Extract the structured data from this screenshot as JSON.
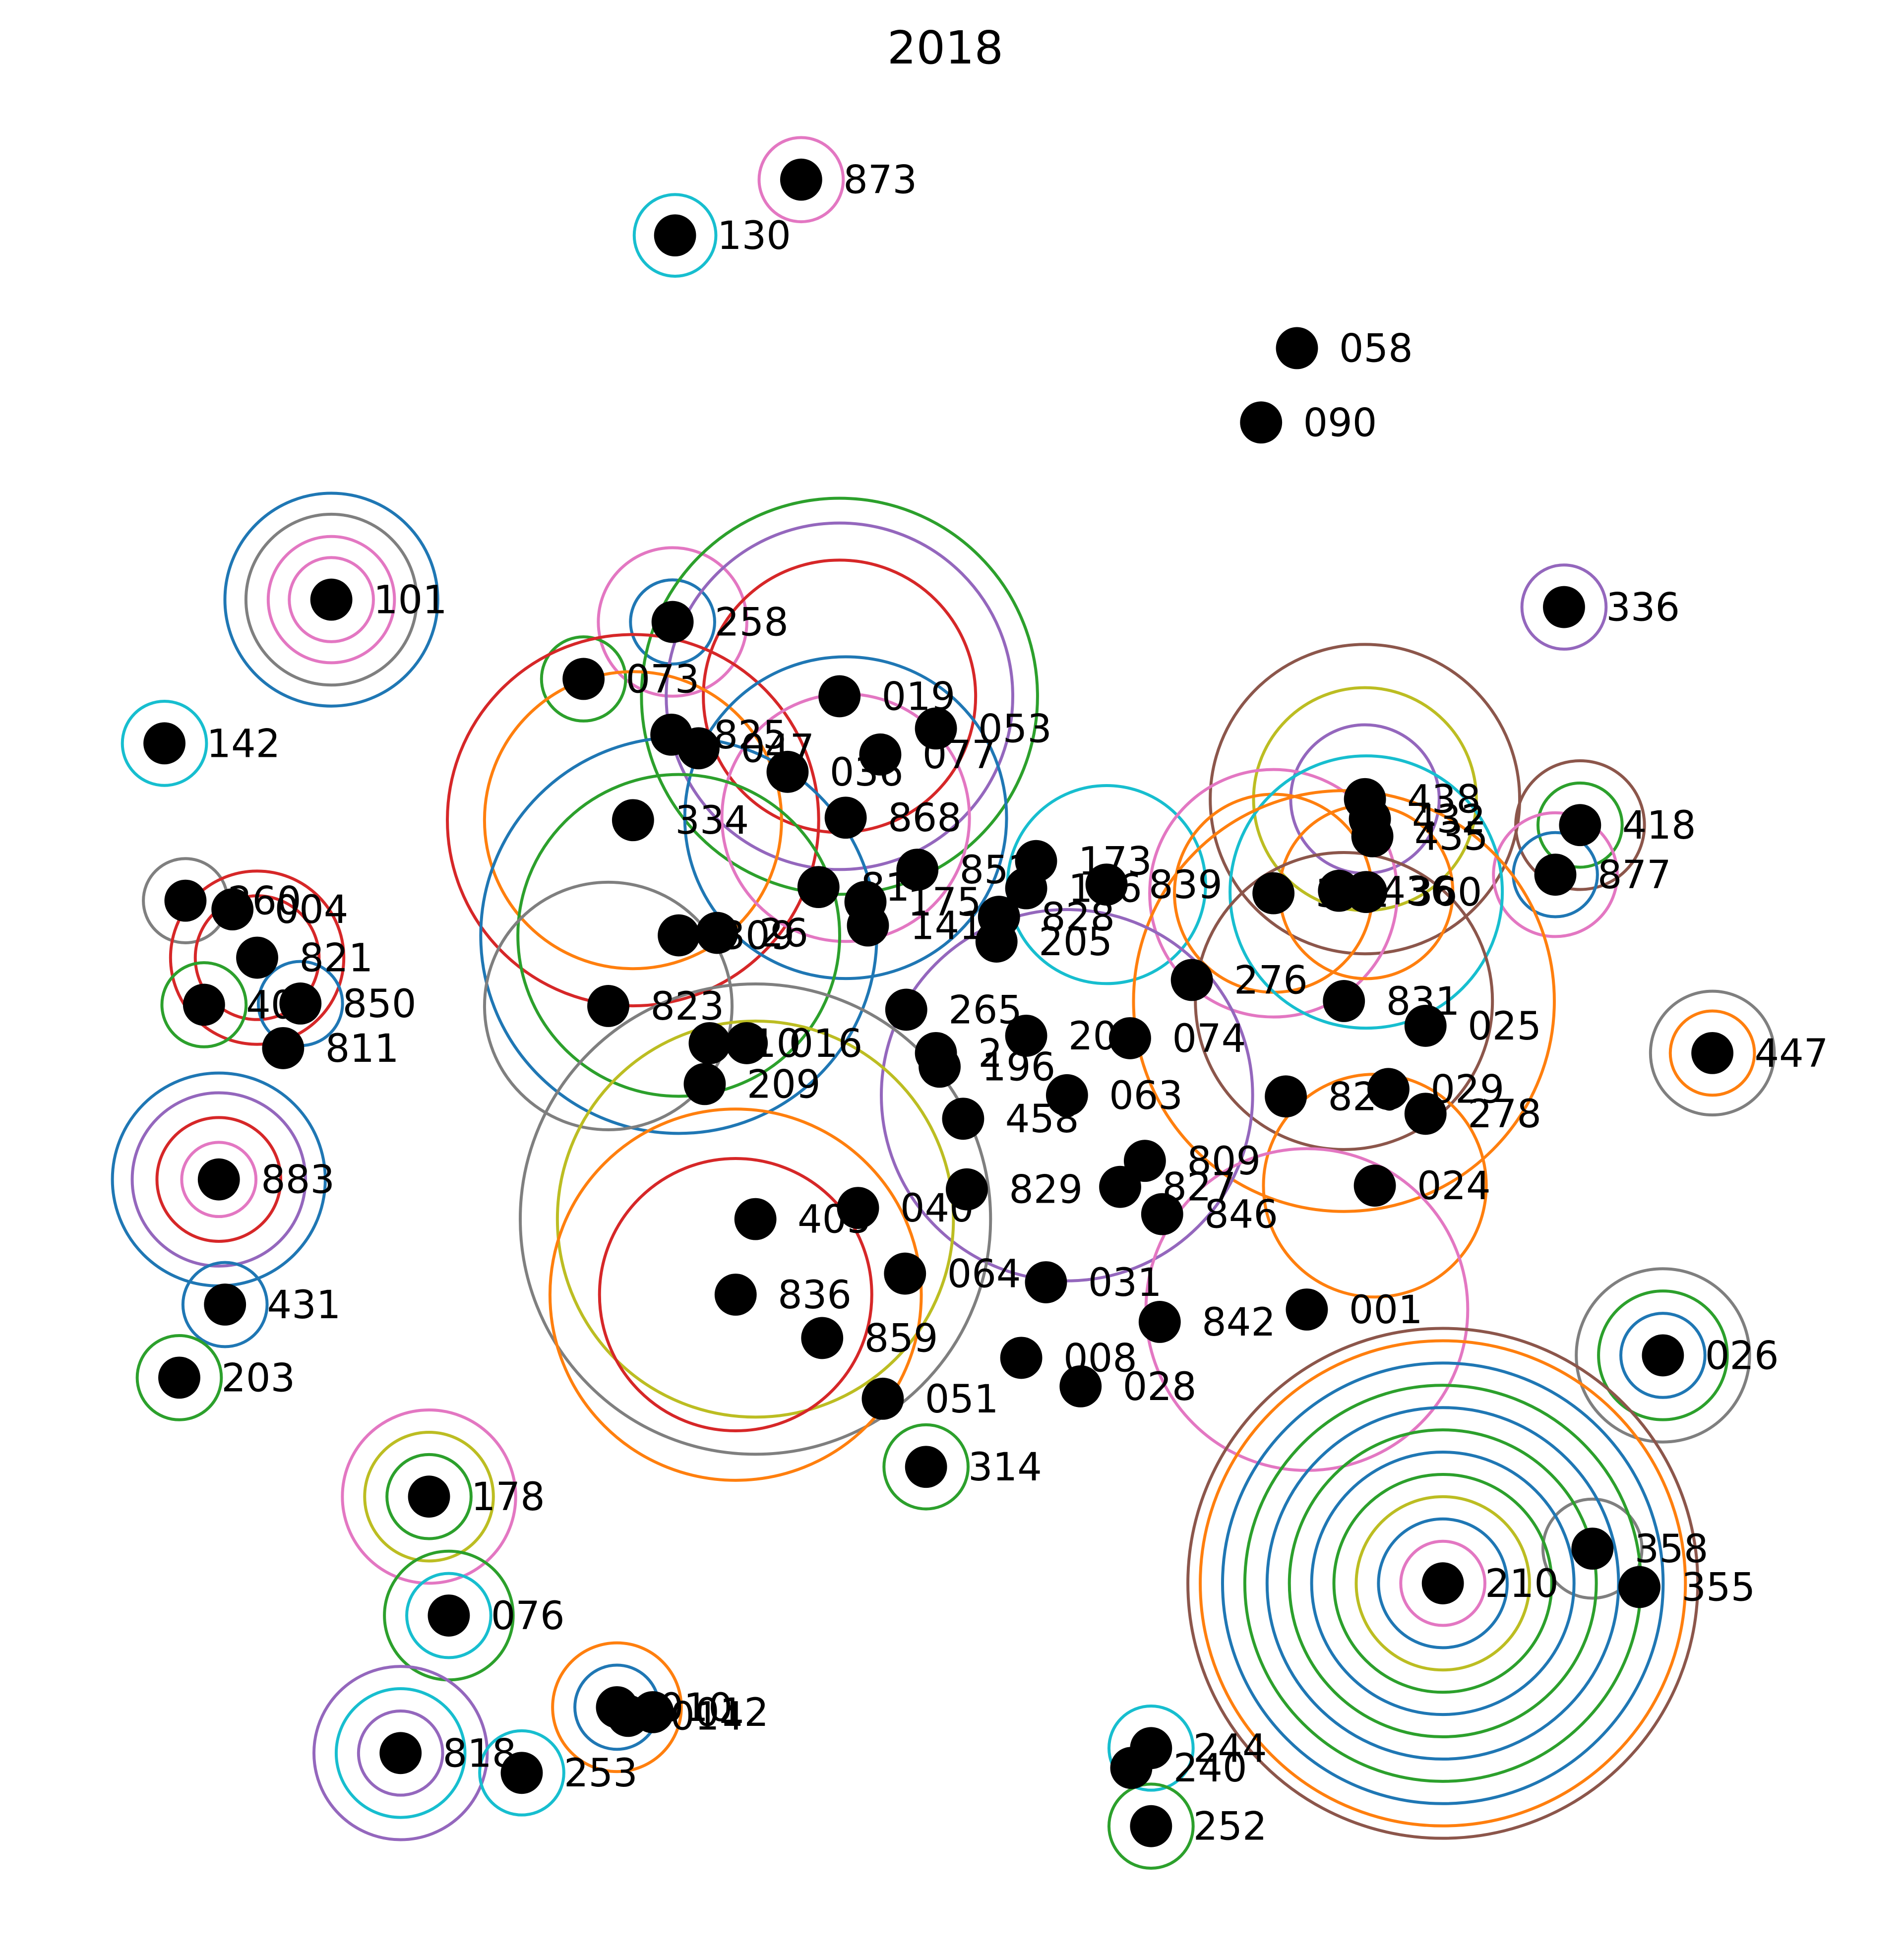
{
  "chart_data": {
    "type": "scatter",
    "title": "2018",
    "xlim": [
      0,
      1540
    ],
    "ylim": [
      0,
      1578
    ],
    "axes_visible": false,
    "grid": false,
    "legend": "none",
    "ring_palette": [
      "#1f77b4",
      "#ff7f0e",
      "#2ca02c",
      "#d62728",
      "#9467bd",
      "#8c564b",
      "#e377c2",
      "#7f7f7f",
      "#bcbd22",
      "#17becf"
    ],
    "points": [
      {
        "label": "873",
        "x": 648,
        "y": 145,
        "rings": [
          {
            "r": 34,
            "c": "#e377c2"
          }
        ]
      },
      {
        "label": "130",
        "x": 546,
        "y": 190,
        "rings": [
          {
            "r": 33,
            "c": "#17becf"
          }
        ]
      },
      {
        "label": "058",
        "x": 1049,
        "y": 281,
        "rings": []
      },
      {
        "label": "090",
        "x": 1020,
        "y": 341,
        "rings": []
      },
      {
        "label": "101",
        "x": 268,
        "y": 484,
        "rings": [
          {
            "r": 34,
            "c": "#e377c2"
          },
          {
            "r": 51,
            "c": "#e377c2"
          },
          {
            "r": 69,
            "c": "#7f7f7f"
          },
          {
            "r": 86,
            "c": "#1f77b4"
          }
        ]
      },
      {
        "label": "336",
        "x": 1265,
        "y": 490,
        "rings": [
          {
            "r": 34,
            "c": "#9467bd"
          }
        ]
      },
      {
        "label": "258",
        "x": 544,
        "y": 502,
        "rings": [
          {
            "r": 34,
            "c": "#1f77b4"
          },
          {
            "r": 60,
            "c": "#e377c2"
          }
        ]
      },
      {
        "label": "073",
        "x": 472,
        "y": 548,
        "rings": [
          {
            "r": 34,
            "c": "#2ca02c"
          }
        ]
      },
      {
        "label": "019",
        "x": 679,
        "y": 562,
        "rings": [
          {
            "r": 110,
            "c": "#d62728"
          },
          {
            "r": 140,
            "c": "#9467bd"
          },
          {
            "r": 160,
            "c": "#2ca02c"
          }
        ]
      },
      {
        "label": "053",
        "x": 757,
        "y": 588,
        "rings": []
      },
      {
        "label": "142",
        "x": 133,
        "y": 600,
        "rings": [
          {
            "r": 34,
            "c": "#17becf"
          }
        ]
      },
      {
        "label": "825",
        "x": 543,
        "y": 593,
        "rings": []
      },
      {
        "label": "047",
        "x": 565,
        "y": 604,
        "rings": []
      },
      {
        "label": "077",
        "x": 712,
        "y": 609,
        "rings": []
      },
      {
        "label": "036",
        "x": 637,
        "y": 623,
        "rings": []
      },
      {
        "label": "334",
        "x": 512,
        "y": 662,
        "rings": [
          {
            "r": 120,
            "c": "#ff7f0e"
          },
          {
            "r": 150,
            "c": "#d62728"
          }
        ]
      },
      {
        "label": "868",
        "x": 684,
        "y": 660,
        "rings": [
          {
            "r": 100,
            "c": "#e377c2"
          },
          {
            "r": 130,
            "c": "#1f77b4"
          }
        ]
      },
      {
        "label": "438",
        "x": 1104,
        "y": 645,
        "rings": [
          {
            "r": 60,
            "c": "#9467bd"
          },
          {
            "r": 90,
            "c": "#bcbd22"
          },
          {
            "r": 125,
            "c": "#8c564b"
          }
        ]
      },
      {
        "label": "432",
        "x": 1108,
        "y": 661,
        "rings": []
      },
      {
        "label": "435",
        "x": 1110,
        "y": 675,
        "rings": []
      },
      {
        "label": "418",
        "x": 1278,
        "y": 666,
        "rings": [
          {
            "r": 34,
            "c": "#2ca02c"
          },
          {
            "r": 52,
            "c": "#8c564b"
          }
        ]
      },
      {
        "label": "877",
        "x": 1258,
        "y": 706,
        "rings": [
          {
            "r": 34,
            "c": "#1f77b4"
          },
          {
            "r": 50,
            "c": "#e377c2"
          }
        ]
      },
      {
        "label": "852",
        "x": 742,
        "y": 702,
        "rings": []
      },
      {
        "label": "173",
        "x": 838,
        "y": 695,
        "rings": []
      },
      {
        "label": "839",
        "x": 895,
        "y": 714,
        "rings": [
          {
            "r": 80,
            "c": "#17becf"
          }
        ]
      },
      {
        "label": "331",
        "x": 1030,
        "y": 721,
        "rings": [
          {
            "r": 80,
            "c": "#ff7f0e"
          },
          {
            "r": 100,
            "c": "#e377c2"
          }
        ]
      },
      {
        "label": "436",
        "x": 1083,
        "y": 719,
        "rings": []
      },
      {
        "label": "360",
        "x": 1105,
        "y": 720,
        "rings": [
          {
            "r": 70,
            "c": "#ff7f0e"
          },
          {
            "r": 110,
            "c": "#17becf"
          }
        ]
      },
      {
        "label": "136",
        "x": 830,
        "y": 717,
        "rings": []
      },
      {
        "label": "81",
        "x": 662,
        "y": 716,
        "rings": []
      },
      {
        "label": "175",
        "x": 700,
        "y": 728,
        "rings": []
      },
      {
        "label": "141",
        "x": 702,
        "y": 747,
        "rings": []
      },
      {
        "label": "828",
        "x": 808,
        "y": 740,
        "rings": []
      },
      {
        "label": "260",
        "x": 150,
        "y": 727,
        "rings": [
          {
            "r": 34,
            "c": "#7f7f7f"
          }
        ]
      },
      {
        "label": "004",
        "x": 188,
        "y": 734,
        "rings": []
      },
      {
        "label": "309",
        "x": 549,
        "y": 755,
        "rings": [
          {
            "r": 130,
            "c": "#2ca02c"
          },
          {
            "r": 160,
            "c": "#1f77b4"
          }
        ]
      },
      {
        "label": "26",
        "x": 580,
        "y": 753,
        "rings": []
      },
      {
        "label": "205",
        "x": 806,
        "y": 760,
        "rings": []
      },
      {
        "label": "821",
        "x": 208,
        "y": 773,
        "rings": [
          {
            "r": 50,
            "c": "#d62728"
          },
          {
            "r": 70,
            "c": "#d62728"
          }
        ]
      },
      {
        "label": "276",
        "x": 964,
        "y": 791,
        "rings": []
      },
      {
        "label": "407",
        "x": 165,
        "y": 811,
        "rings": [
          {
            "r": 34,
            "c": "#2ca02c"
          }
        ]
      },
      {
        "label": "850",
        "x": 243,
        "y": 810,
        "rings": [
          {
            "r": 34,
            "c": "#1f77b4"
          }
        ]
      },
      {
        "label": "823",
        "x": 492,
        "y": 812,
        "rings": [
          {
            "r": 100,
            "c": "#7f7f7f"
          }
        ]
      },
      {
        "label": "265",
        "x": 733,
        "y": 815,
        "rings": []
      },
      {
        "label": "831",
        "x": 1087,
        "y": 808,
        "rings": [
          {
            "r": 120,
            "c": "#8c564b"
          },
          {
            "r": 170,
            "c": "#ff7f0e"
          }
        ]
      },
      {
        "label": "025",
        "x": 1153,
        "y": 828,
        "rings": []
      },
      {
        "label": "811",
        "x": 229,
        "y": 846,
        "rings": []
      },
      {
        "label": "447",
        "x": 1385,
        "y": 850,
        "rings": [
          {
            "r": 34,
            "c": "#ff7f0e"
          },
          {
            "r": 50,
            "c": "#7f7f7f"
          }
        ]
      },
      {
        "label": "10",
        "x": 574,
        "y": 842,
        "rings": []
      },
      {
        "label": "016",
        "x": 604,
        "y": 842,
        "rings": []
      },
      {
        "label": "074",
        "x": 914,
        "y": 838,
        "rings": []
      },
      {
        "label": "20",
        "x": 830,
        "y": 836,
        "rings": []
      },
      {
        "label": "2",
        "x": 757,
        "y": 850,
        "rings": []
      },
      {
        "label": "196",
        "x": 760,
        "y": 861,
        "rings": []
      },
      {
        "label": "209",
        "x": 570,
        "y": 875,
        "rings": []
      },
      {
        "label": "063",
        "x": 863,
        "y": 884,
        "rings": [
          {
            "r": 150,
            "c": "#9467bd"
          }
        ]
      },
      {
        "label": "820",
        "x": 1040,
        "y": 885,
        "rings": []
      },
      {
        "label": "029",
        "x": 1123,
        "y": 879,
        "rings": []
      },
      {
        "label": "278",
        "x": 1153,
        "y": 899,
        "rings": []
      },
      {
        "label": "458",
        "x": 779,
        "y": 903,
        "rings": []
      },
      {
        "label": "809",
        "x": 926,
        "y": 937,
        "rings": []
      },
      {
        "label": "024",
        "x": 1112,
        "y": 957,
        "rings": [
          {
            "r": 90,
            "c": "#ff7f0e"
          }
        ]
      },
      {
        "label": "883",
        "x": 177,
        "y": 952,
        "rings": [
          {
            "r": 30,
            "c": "#e377c2"
          },
          {
            "r": 50,
            "c": "#d62728"
          },
          {
            "r": 70,
            "c": "#9467bd"
          },
          {
            "r": 86,
            "c": "#1f77b4"
          }
        ]
      },
      {
        "label": "040",
        "x": 694,
        "y": 975,
        "rings": []
      },
      {
        "label": "829",
        "x": 782,
        "y": 960,
        "rings": []
      },
      {
        "label": "827",
        "x": 906,
        "y": 958,
        "rings": []
      },
      {
        "label": "846",
        "x": 940,
        "y": 980,
        "rings": []
      },
      {
        "label": "405",
        "x": 611,
        "y": 984,
        "rings": [
          {
            "r": 160,
            "c": "#bcbd22"
          },
          {
            "r": 190,
            "c": "#7f7f7f"
          }
        ]
      },
      {
        "label": "431",
        "x": 182,
        "y": 1053,
        "rings": [
          {
            "r": 34,
            "c": "#1f77b4"
          }
        ]
      },
      {
        "label": "064",
        "x": 732,
        "y": 1028,
        "rings": []
      },
      {
        "label": "031",
        "x": 846,
        "y": 1035,
        "rings": []
      },
      {
        "label": "836",
        "x": 595,
        "y": 1045,
        "rings": [
          {
            "r": 110,
            "c": "#d62728"
          },
          {
            "r": 150,
            "c": "#ff7f0e"
          }
        ]
      },
      {
        "label": "842",
        "x": 938,
        "y": 1067,
        "rings": []
      },
      {
        "label": "001",
        "x": 1057,
        "y": 1057,
        "rings": [
          {
            "r": 130,
            "c": "#e377c2"
          }
        ]
      },
      {
        "label": "859",
        "x": 665,
        "y": 1080,
        "rings": []
      },
      {
        "label": "026",
        "x": 1345,
        "y": 1094,
        "rings": [
          {
            "r": 34,
            "c": "#1f77b4"
          },
          {
            "r": 52,
            "c": "#2ca02c"
          },
          {
            "r": 70,
            "c": "#7f7f7f"
          }
        ]
      },
      {
        "label": "203",
        "x": 145,
        "y": 1112,
        "rings": [
          {
            "r": 34,
            "c": "#2ca02c"
          }
        ]
      },
      {
        "label": "008",
        "x": 826,
        "y": 1096,
        "rings": []
      },
      {
        "label": "028",
        "x": 874,
        "y": 1119,
        "rings": []
      },
      {
        "label": "051",
        "x": 714,
        "y": 1129,
        "rings": []
      },
      {
        "label": "314",
        "x": 749,
        "y": 1184,
        "rings": [
          {
            "r": 34,
            "c": "#2ca02c"
          }
        ]
      },
      {
        "label": "178",
        "x": 347,
        "y": 1208,
        "rings": [
          {
            "r": 34,
            "c": "#2ca02c"
          },
          {
            "r": 52,
            "c": "#bcbd22"
          },
          {
            "r": 70,
            "c": "#e377c2"
          }
        ]
      },
      {
        "label": "358",
        "x": 1288,
        "y": 1250,
        "rings": [
          {
            "r": 40,
            "c": "#7f7f7f"
          }
        ]
      },
      {
        "label": "210",
        "x": 1167,
        "y": 1278,
        "rings": [
          {
            "r": 34,
            "c": "#e377c2"
          },
          {
            "r": 52,
            "c": "#1f77b4"
          },
          {
            "r": 70,
            "c": "#bcbd22"
          },
          {
            "r": 88,
            "c": "#2ca02c"
          },
          {
            "r": 106,
            "c": "#1f77b4"
          },
          {
            "r": 124,
            "c": "#2ca02c"
          },
          {
            "r": 142,
            "c": "#1f77b4"
          },
          {
            "r": 160,
            "c": "#2ca02c"
          },
          {
            "r": 178,
            "c": "#1f77b4"
          },
          {
            "r": 196,
            "c": "#ff7f0e"
          },
          {
            "r": 206,
            "c": "#8c564b"
          }
        ]
      },
      {
        "label": "355",
        "x": 1326,
        "y": 1281,
        "rings": []
      },
      {
        "label": "076",
        "x": 363,
        "y": 1304,
        "rings": [
          {
            "r": 34,
            "c": "#17becf"
          },
          {
            "r": 52,
            "c": "#2ca02c"
          }
        ]
      },
      {
        "label": "010",
        "x": 499,
        "y": 1378,
        "rings": [
          {
            "r": 34,
            "c": "#1f77b4"
          },
          {
            "r": 52,
            "c": "#ff7f0e"
          }
        ]
      },
      {
        "label": "012",
        "x": 528,
        "y": 1382,
        "rings": []
      },
      {
        "label": "014",
        "x": 508,
        "y": 1385,
        "rings": []
      },
      {
        "label": "244",
        "x": 931,
        "y": 1411,
        "rings": [
          {
            "r": 34,
            "c": "#17becf"
          }
        ]
      },
      {
        "label": "818",
        "x": 324,
        "y": 1415,
        "rings": [
          {
            "r": 34,
            "c": "#9467bd"
          },
          {
            "r": 52,
            "c": "#17becf"
          },
          {
            "r": 70,
            "c": "#9467bd"
          }
        ]
      },
      {
        "label": "253",
        "x": 422,
        "y": 1431,
        "rings": [
          {
            "r": 34,
            "c": "#17becf"
          }
        ]
      },
      {
        "label": "240",
        "x": 915,
        "y": 1427,
        "rings": []
      },
      {
        "label": "252",
        "x": 931,
        "y": 1474,
        "rings": [
          {
            "r": 34,
            "c": "#2ca02c"
          }
        ]
      }
    ]
  }
}
